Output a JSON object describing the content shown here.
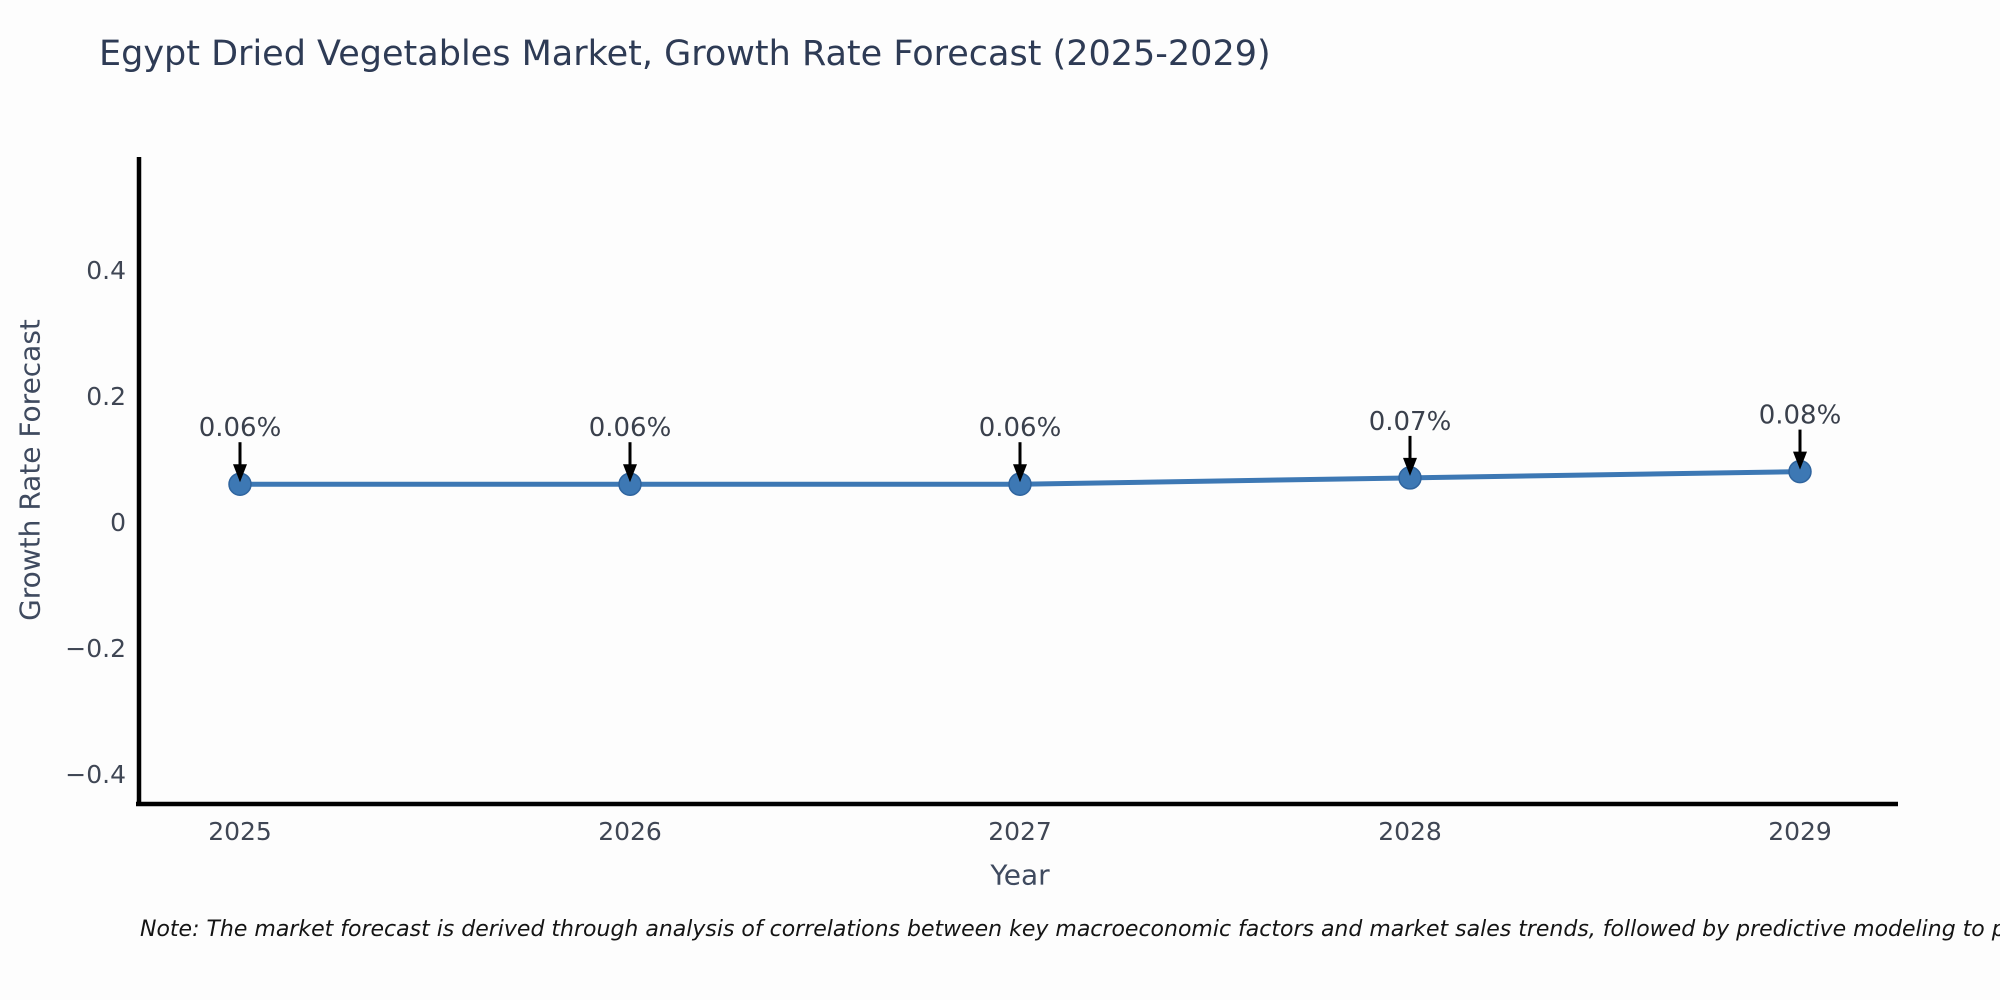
{
  "page": {
    "note": "Note: The market forecast is derived through analysis of correlations between key macroeconomic factors and market sales trends, followed by predictive modeling to project future sales"
  },
  "chart_data": {
    "type": "line",
    "title": "Egypt Dried Vegetables Market, Growth Rate Forecast (2025-2029)",
    "xlabel": "Year",
    "ylabel": "Growth Rate Forecast",
    "categories": [
      "2025",
      "2026",
      "2027",
      "2028",
      "2029"
    ],
    "series": [
      {
        "name": "Growth Rate Forecast",
        "values": [
          0.06,
          0.06,
          0.06,
          0.07,
          0.08
        ]
      }
    ],
    "point_labels": [
      "0.06%",
      "0.06%",
      "0.06%",
      "0.07%",
      "0.08%"
    ],
    "ytick_values": [
      0.4,
      0.2,
      0,
      -0.2,
      -0.4
    ],
    "ytick_labels": [
      "0.4",
      "0.2",
      "0",
      "−0.2",
      "−0.4"
    ],
    "ylim": [
      -0.45,
      0.57
    ],
    "grid": false,
    "legend_position": "none",
    "line_color": "#3d78b4",
    "marker_color": "#3d78b4",
    "marker_edge_color": "#2f649e",
    "axis_color": "#000000",
    "annotation_arrow_color": "#000000",
    "background_color": "#fdfdfd"
  }
}
